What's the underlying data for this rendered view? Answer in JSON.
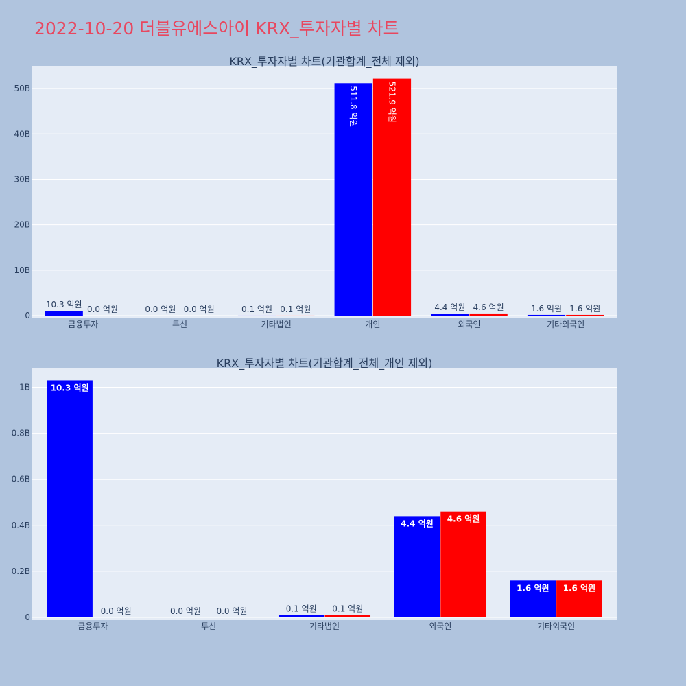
{
  "title": "2022-10-20 더블유에스아이 KRX_투자자별 차트",
  "colors": {
    "series1": "#0000ff",
    "series2": "#ff0000",
    "plot_bg": "#e5ecf6",
    "page_bg": "#b0c4de",
    "title": "#e8475f"
  },
  "chart_data": [
    {
      "type": "bar",
      "title": "KRX_투자자별 차트(기관합계_전체 제외)",
      "categories": [
        "금융투자",
        "투신",
        "기타법인",
        "개인",
        "외국인",
        "기타외국인"
      ],
      "series": [
        {
          "values": [
            1030000000,
            0,
            10000000,
            51180000000,
            440000000,
            160000000
          ],
          "labels": [
            "10.3 억원",
            "0.0 억원",
            "0.1 억원",
            "511.8 억원",
            "4.4 억원",
            "1.6 억원"
          ]
        },
        {
          "values": [
            0,
            0,
            10000000,
            52190000000,
            460000000,
            160000000
          ],
          "labels": [
            "0.0 억원",
            "0.0 억원",
            "0.1 억원",
            "521.9 억원",
            "4.6 억원",
            "1.6 억원"
          ]
        }
      ],
      "yticks": [
        0,
        10000000000,
        20000000000,
        30000000000,
        40000000000,
        50000000000
      ],
      "ytick_labels": [
        "0",
        "10B",
        "20B",
        "30B",
        "40B",
        "50B"
      ],
      "ylim": [
        0,
        55000000000
      ]
    },
    {
      "type": "bar",
      "title": "KRX_투자자별 차트(기관합계_전체_개인 제외)",
      "categories": [
        "금융투자",
        "투신",
        "기타법인",
        "외국인",
        "기타외국인"
      ],
      "series": [
        {
          "values": [
            1030000000,
            0,
            10000000,
            440000000,
            160000000
          ],
          "labels": [
            "10.3 억원",
            "0.0 억원",
            "0.1 억원",
            "4.4 억원",
            "1.6 억원"
          ]
        },
        {
          "values": [
            0,
            0,
            10000000,
            460000000,
            160000000
          ],
          "labels": [
            "0.0 억원",
            "0.0 억원",
            "0.1 억원",
            "4.6 억원",
            "1.6 억원"
          ]
        }
      ],
      "yticks": [
        0,
        200000000,
        400000000,
        600000000,
        800000000,
        1000000000
      ],
      "ytick_labels": [
        "0",
        "0.2B",
        "0.4B",
        "0.6B",
        "0.8B",
        "1B"
      ],
      "ylim": [
        0,
        1085000000
      ]
    }
  ]
}
